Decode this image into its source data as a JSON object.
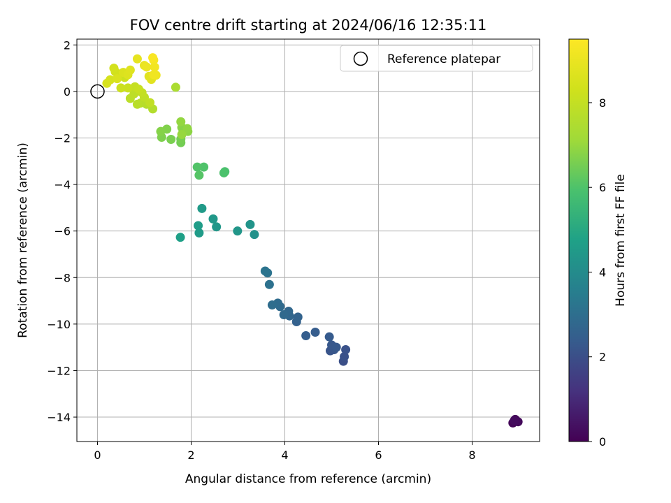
{
  "chart_data": {
    "type": "scatter",
    "title": "FOV centre drift starting at 2024/06/16 12:35:11",
    "xlabel": "Angular distance from reference (arcmin)",
    "ylabel": "Rotation from reference (arcmin)",
    "xlim": [
      -0.44,
      9.44
    ],
    "ylim": [
      -15.05,
      2.25
    ],
    "xticks": [
      0,
      2,
      4,
      6,
      8
    ],
    "yticks": [
      2,
      0,
      -2,
      -4,
      -6,
      -8,
      -10,
      -12,
      -14
    ],
    "grid": true,
    "colormap": "viridis",
    "colorbar": {
      "label": "Hours from first FF file",
      "range": [
        0,
        9.5
      ],
      "ticks": [
        0,
        2,
        4,
        6,
        8
      ]
    },
    "legend": {
      "placement": "top-right",
      "entries": [
        "Reference platepar"
      ]
    },
    "reference_point": {
      "x": 0,
      "y": 0,
      "label": "Reference platepar"
    },
    "points": [
      {
        "x": 8.87,
        "y": -14.25,
        "h": 0.1
      },
      {
        "x": 8.92,
        "y": -14.1,
        "h": 0.15
      },
      {
        "x": 8.98,
        "y": -14.2,
        "h": 0.2
      },
      {
        "x": 8.9,
        "y": -14.15,
        "h": 0.25
      },
      {
        "x": 5.25,
        "y": -11.6,
        "h": 2.0
      },
      {
        "x": 5.27,
        "y": -11.4,
        "h": 2.05
      },
      {
        "x": 5.3,
        "y": -11.1,
        "h": 2.1
      },
      {
        "x": 4.97,
        "y": -11.15,
        "h": 2.15
      },
      {
        "x": 5.05,
        "y": -11.1,
        "h": 2.2
      },
      {
        "x": 5.0,
        "y": -10.9,
        "h": 2.25
      },
      {
        "x": 5.1,
        "y": -11.0,
        "h": 2.3
      },
      {
        "x": 4.95,
        "y": -10.55,
        "h": 2.35
      },
      {
        "x": 4.65,
        "y": -10.35,
        "h": 2.4
      },
      {
        "x": 4.45,
        "y": -10.5,
        "h": 2.45
      },
      {
        "x": 4.25,
        "y": -9.9,
        "h": 2.55
      },
      {
        "x": 4.28,
        "y": -9.7,
        "h": 2.6
      },
      {
        "x": 4.1,
        "y": -9.65,
        "h": 2.7
      },
      {
        "x": 4.08,
        "y": -9.45,
        "h": 2.75
      },
      {
        "x": 3.98,
        "y": -9.6,
        "h": 2.8
      },
      {
        "x": 3.9,
        "y": -9.25,
        "h": 2.85
      },
      {
        "x": 3.85,
        "y": -9.1,
        "h": 2.9
      },
      {
        "x": 3.73,
        "y": -9.18,
        "h": 2.95
      },
      {
        "x": 3.67,
        "y": -8.3,
        "h": 3.1
      },
      {
        "x": 3.63,
        "y": -7.8,
        "h": 3.15
      },
      {
        "x": 3.58,
        "y": -7.72,
        "h": 3.2
      },
      {
        "x": 3.35,
        "y": -6.15,
        "h": 4.2
      },
      {
        "x": 3.26,
        "y": -5.72,
        "h": 4.3
      },
      {
        "x": 2.99,
        "y": -6.0,
        "h": 4.35
      },
      {
        "x": 2.54,
        "y": -5.82,
        "h": 4.4
      },
      {
        "x": 2.47,
        "y": -5.48,
        "h": 4.45
      },
      {
        "x": 2.23,
        "y": -5.03,
        "h": 4.5
      },
      {
        "x": 2.17,
        "y": -6.08,
        "h": 4.55
      },
      {
        "x": 2.15,
        "y": -5.77,
        "h": 4.6
      },
      {
        "x": 1.77,
        "y": -6.27,
        "h": 4.7
      },
      {
        "x": 2.72,
        "y": -3.45,
        "h": 5.9
      },
      {
        "x": 2.7,
        "y": -3.5,
        "h": 5.95
      },
      {
        "x": 2.27,
        "y": -3.25,
        "h": 6.0
      },
      {
        "x": 2.13,
        "y": -3.25,
        "h": 6.05
      },
      {
        "x": 2.17,
        "y": -3.6,
        "h": 6.1
      },
      {
        "x": 1.78,
        "y": -2.2,
        "h": 6.5
      },
      {
        "x": 1.78,
        "y": -2.05,
        "h": 6.55
      },
      {
        "x": 1.57,
        "y": -2.06,
        "h": 6.6
      },
      {
        "x": 1.37,
        "y": -1.97,
        "h": 6.65
      },
      {
        "x": 1.48,
        "y": -1.62,
        "h": 6.7
      },
      {
        "x": 1.35,
        "y": -1.72,
        "h": 6.75
      },
      {
        "x": 1.8,
        "y": -1.55,
        "h": 6.8
      },
      {
        "x": 1.93,
        "y": -1.72,
        "h": 6.85
      },
      {
        "x": 1.92,
        "y": -1.6,
        "h": 6.9
      },
      {
        "x": 1.78,
        "y": -1.3,
        "h": 6.95
      },
      {
        "x": 1.8,
        "y": -1.85,
        "h": 7.0
      },
      {
        "x": 1.67,
        "y": 0.18,
        "h": 7.4
      },
      {
        "x": 1.18,
        "y": -0.75,
        "h": 7.6
      },
      {
        "x": 1.05,
        "y": -0.55,
        "h": 7.65
      },
      {
        "x": 0.92,
        "y": -0.5,
        "h": 7.7
      },
      {
        "x": 0.85,
        "y": -0.55,
        "h": 7.75
      },
      {
        "x": 0.7,
        "y": -0.3,
        "h": 7.8
      },
      {
        "x": 0.78,
        "y": -0.1,
        "h": 7.85
      },
      {
        "x": 1.0,
        "y": -0.25,
        "h": 7.9
      },
      {
        "x": 1.12,
        "y": -0.48,
        "h": 7.95
      },
      {
        "x": 0.95,
        "y": -0.05,
        "h": 8.0
      },
      {
        "x": 0.8,
        "y": 0.2,
        "h": 8.05
      },
      {
        "x": 0.88,
        "y": 0.1,
        "h": 8.1
      },
      {
        "x": 0.65,
        "y": 0.15,
        "h": 8.15
      },
      {
        "x": 0.5,
        "y": 0.15,
        "h": 8.2
      },
      {
        "x": 0.58,
        "y": 0.6,
        "h": 8.25
      },
      {
        "x": 0.45,
        "y": 0.75,
        "h": 8.3
      },
      {
        "x": 0.38,
        "y": 0.85,
        "h": 8.35
      },
      {
        "x": 0.35,
        "y": 1.0,
        "h": 8.4
      },
      {
        "x": 0.27,
        "y": 0.5,
        "h": 8.45
      },
      {
        "x": 0.2,
        "y": 0.35,
        "h": 8.5
      },
      {
        "x": 0.42,
        "y": 0.55,
        "h": 8.55
      },
      {
        "x": 0.55,
        "y": 0.82,
        "h": 8.6
      },
      {
        "x": 0.65,
        "y": 0.72,
        "h": 8.65
      },
      {
        "x": 0.7,
        "y": 0.92,
        "h": 8.7
      },
      {
        "x": 1.1,
        "y": 0.65,
        "h": 8.75
      },
      {
        "x": 1.15,
        "y": 0.52,
        "h": 8.8
      },
      {
        "x": 0.85,
        "y": 1.4,
        "h": 8.9
      },
      {
        "x": 1.0,
        "y": 1.12,
        "h": 9.0
      },
      {
        "x": 1.05,
        "y": 1.05,
        "h": 9.05
      },
      {
        "x": 1.25,
        "y": 0.7,
        "h": 9.1
      },
      {
        "x": 1.2,
        "y": 0.72,
        "h": 9.15
      },
      {
        "x": 1.22,
        "y": 1.05,
        "h": 9.2
      },
      {
        "x": 1.2,
        "y": 1.35,
        "h": 9.3
      },
      {
        "x": 1.18,
        "y": 1.45,
        "h": 9.4
      }
    ]
  }
}
